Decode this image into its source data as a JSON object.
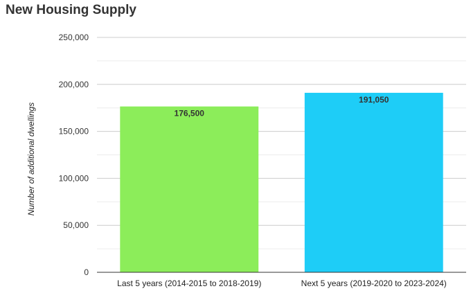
{
  "title": "New Housing Supply",
  "chart_data": {
    "type": "bar",
    "title": "New Housing Supply",
    "xlabel": "",
    "ylabel": "Number of additional dwellings",
    "categories": [
      "Last 5 years (2014-2015 to 2018-2019)",
      "Next 5 years (2019-2020 to 2023-2024)"
    ],
    "values": [
      176500,
      191050
    ],
    "data_labels": [
      "176,500",
      "191,050"
    ],
    "bar_colors": [
      "#8ced5a",
      "#1ecdf7"
    ],
    "ylim": [
      0,
      250000
    ],
    "yticks": [
      0,
      50000,
      100000,
      150000,
      200000,
      250000
    ],
    "ytick_labels": [
      "0",
      "50,000",
      "100,000",
      "150,000",
      "200,000",
      "250,000"
    ],
    "grid": true,
    "legend": "none"
  }
}
